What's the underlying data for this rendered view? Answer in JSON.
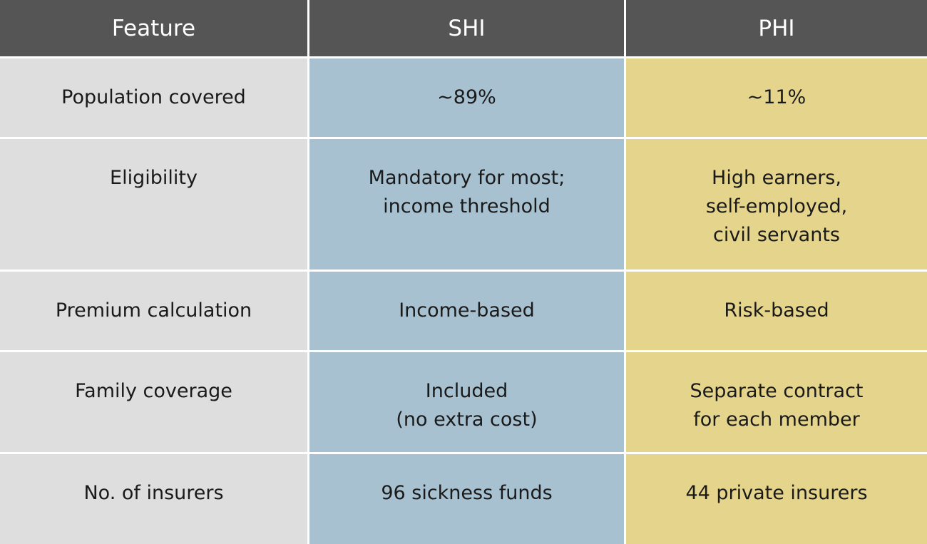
{
  "table": {
    "header": [
      "Feature",
      "SHI",
      "PHI"
    ],
    "rows": [
      [
        [
          "Population covered"
        ],
        [
          "~89%"
        ],
        [
          "~11%"
        ]
      ],
      [
        [
          "Eligibility"
        ],
        [
          "Mandatory for most;",
          "income threshold"
        ],
        [
          "High earners,",
          "self-employed,",
          "civil servants"
        ]
      ],
      [
        [
          "Premium calculation"
        ],
        [
          "Income-based"
        ],
        [
          "Risk-based"
        ]
      ],
      [
        [
          "Family coverage"
        ],
        [
          "Included",
          "(no extra cost)"
        ],
        [
          "Separate contract",
          "for each member"
        ]
      ],
      [
        [
          "No. of insurers"
        ],
        [
          "96 sickness funds"
        ],
        [
          "44 private insurers"
        ]
      ]
    ]
  }
}
